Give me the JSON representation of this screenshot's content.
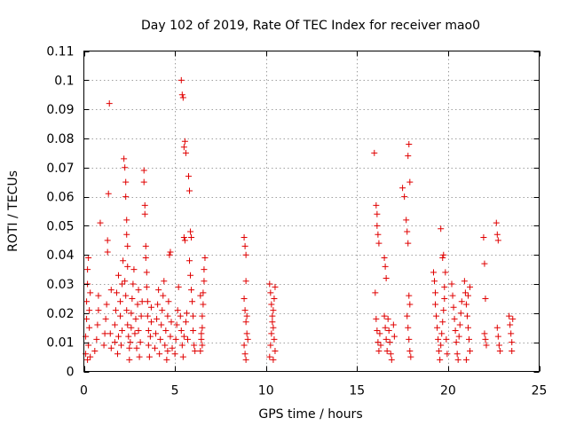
{
  "chart_data": {
    "type": "scatter",
    "title": "Day 102 of 2019, Rate Of TEC Index for receiver mao0",
    "xlabel": "GPS time / hours",
    "ylabel": "ROTI / TECUs",
    "xlim": [
      0,
      25
    ],
    "ylim": [
      0,
      0.11
    ],
    "x_ticks": [
      0,
      5,
      10,
      15,
      20,
      25
    ],
    "y_ticks": [
      0,
      0.01,
      0.02,
      0.03,
      0.04,
      0.05,
      0.06,
      0.07,
      0.08,
      0.09,
      0.1,
      0.11
    ],
    "x_tick_labels": [
      "0",
      "5",
      "10",
      "15",
      "20",
      "25"
    ],
    "y_tick_labels": [
      "0",
      "0.01",
      "0.02",
      "0.03",
      "0.04",
      "0.05",
      "0.06",
      "0.07",
      "0.08",
      "0.09",
      "0.1",
      "0.11"
    ],
    "grid": true,
    "marker": "+",
    "color": "#e00000",
    "series": [
      {
        "name": "ROTI",
        "points": [
          [
            0.1,
            0.006
          ],
          [
            0.1,
            0.012
          ],
          [
            0.15,
            0.018
          ],
          [
            0.15,
            0.024
          ],
          [
            0.2,
            0.03
          ],
          [
            0.2,
            0.035
          ],
          [
            0.25,
            0.039
          ],
          [
            0.25,
            0.009
          ],
          [
            0.2,
            0.004
          ],
          [
            0.3,
            0.015
          ],
          [
            0.3,
            0.021
          ],
          [
            0.35,
            0.027
          ],
          [
            0.35,
            0.005
          ],
          [
            0.6,
            0.007
          ],
          [
            0.7,
            0.011
          ],
          [
            0.75,
            0.016
          ],
          [
            0.8,
            0.021
          ],
          [
            0.8,
            0.026
          ],
          [
            0.9,
            0.051
          ],
          [
            1.1,
            0.009
          ],
          [
            1.15,
            0.013
          ],
          [
            1.2,
            0.018
          ],
          [
            1.25,
            0.023
          ],
          [
            1.3,
            0.045
          ],
          [
            1.3,
            0.041
          ],
          [
            1.35,
            0.061
          ],
          [
            1.4,
            0.092
          ],
          [
            1.45,
            0.013
          ],
          [
            1.5,
            0.008
          ],
          [
            1.5,
            0.028
          ],
          [
            1.7,
            0.01
          ],
          [
            1.7,
            0.016
          ],
          [
            1.75,
            0.021
          ],
          [
            1.8,
            0.027
          ],
          [
            1.85,
            0.006
          ],
          [
            1.9,
            0.012
          ],
          [
            1.9,
            0.033
          ],
          [
            2.0,
            0.019
          ],
          [
            2.0,
            0.024
          ],
          [
            2.05,
            0.009
          ],
          [
            2.1,
            0.014
          ],
          [
            2.1,
            0.03
          ],
          [
            2.15,
            0.038
          ],
          [
            2.2,
            0.073
          ],
          [
            2.25,
            0.07
          ],
          [
            2.3,
            0.065
          ],
          [
            2.3,
            0.06
          ],
          [
            2.35,
            0.052
          ],
          [
            2.35,
            0.047
          ],
          [
            2.4,
            0.043
          ],
          [
            2.4,
            0.036
          ],
          [
            2.25,
            0.031
          ],
          [
            2.3,
            0.026
          ],
          [
            2.35,
            0.021
          ],
          [
            2.4,
            0.016
          ],
          [
            2.45,
            0.012
          ],
          [
            2.5,
            0.008
          ],
          [
            2.5,
            0.004
          ],
          [
            2.55,
            0.01
          ],
          [
            2.6,
            0.015
          ],
          [
            2.6,
            0.02
          ],
          [
            2.65,
            0.025
          ],
          [
            2.7,
            0.03
          ],
          [
            2.75,
            0.035
          ],
          [
            2.8,
            0.013
          ],
          [
            2.85,
            0.018
          ],
          [
            2.9,
            0.008
          ],
          [
            2.95,
            0.023
          ],
          [
            3.0,
            0.028
          ],
          [
            3.0,
            0.014
          ],
          [
            3.05,
            0.005
          ],
          [
            3.1,
            0.01
          ],
          [
            3.15,
            0.019
          ],
          [
            3.2,
            0.024
          ],
          [
            3.3,
            0.069
          ],
          [
            3.3,
            0.065
          ],
          [
            3.35,
            0.057
          ],
          [
            3.35,
            0.054
          ],
          [
            3.4,
            0.043
          ],
          [
            3.4,
            0.039
          ],
          [
            3.45,
            0.034
          ],
          [
            3.45,
            0.029
          ],
          [
            3.5,
            0.024
          ],
          [
            3.5,
            0.019
          ],
          [
            3.55,
            0.014
          ],
          [
            3.55,
            0.009
          ],
          [
            3.6,
            0.005
          ],
          [
            3.65,
            0.012
          ],
          [
            3.7,
            0.017
          ],
          [
            3.7,
            0.022
          ],
          [
            3.9,
            0.008
          ],
          [
            3.95,
            0.013
          ],
          [
            4.0,
            0.018
          ],
          [
            4.05,
            0.023
          ],
          [
            4.1,
            0.028
          ],
          [
            4.15,
            0.006
          ],
          [
            4.2,
            0.011
          ],
          [
            4.25,
            0.016
          ],
          [
            4.3,
            0.021
          ],
          [
            4.35,
            0.026
          ],
          [
            4.4,
            0.031
          ],
          [
            4.45,
            0.009
          ],
          [
            4.5,
            0.014
          ],
          [
            4.55,
            0.004
          ],
          [
            4.6,
            0.007
          ],
          [
            4.6,
            0.019
          ],
          [
            4.65,
            0.024
          ],
          [
            4.7,
            0.04
          ],
          [
            4.75,
            0.041
          ],
          [
            4.75,
            0.012
          ],
          [
            4.8,
            0.017
          ],
          [
            4.85,
            0.008
          ],
          [
            5.0,
            0.006
          ],
          [
            5.05,
            0.011
          ],
          [
            5.1,
            0.016
          ],
          [
            5.15,
            0.021
          ],
          [
            5.2,
            0.029
          ],
          [
            5.35,
            0.1
          ],
          [
            5.4,
            0.095
          ],
          [
            5.45,
            0.094
          ],
          [
            5.5,
            0.077
          ],
          [
            5.55,
            0.079
          ],
          [
            5.6,
            0.075
          ],
          [
            5.5,
            0.046
          ],
          [
            5.55,
            0.045
          ],
          [
            5.3,
            0.019
          ],
          [
            5.35,
            0.014
          ],
          [
            5.4,
            0.009
          ],
          [
            5.45,
            0.005
          ],
          [
            5.5,
            0.012
          ],
          [
            5.6,
            0.017
          ],
          [
            5.65,
            0.02
          ],
          [
            5.7,
            0.011
          ],
          [
            5.75,
            0.067
          ],
          [
            5.8,
            0.062
          ],
          [
            5.85,
            0.048
          ],
          [
            5.9,
            0.046
          ],
          [
            5.8,
            0.038
          ],
          [
            5.85,
            0.033
          ],
          [
            5.9,
            0.028
          ],
          [
            5.95,
            0.024
          ],
          [
            6.0,
            0.019
          ],
          [
            6.0,
            0.014
          ],
          [
            6.05,
            0.009
          ],
          [
            6.1,
            0.007
          ],
          [
            6.4,
            0.007
          ],
          [
            6.45,
            0.011
          ],
          [
            6.5,
            0.015
          ],
          [
            6.5,
            0.019
          ],
          [
            6.55,
            0.023
          ],
          [
            6.55,
            0.027
          ],
          [
            6.6,
            0.031
          ],
          [
            6.6,
            0.035
          ],
          [
            6.65,
            0.039
          ],
          [
            6.4,
            0.026
          ],
          [
            6.45,
            0.013
          ],
          [
            6.5,
            0.009
          ],
          [
            8.8,
            0.046
          ],
          [
            8.85,
            0.043
          ],
          [
            8.9,
            0.04
          ],
          [
            8.9,
            0.031
          ],
          [
            8.8,
            0.025
          ],
          [
            8.85,
            0.021
          ],
          [
            8.9,
            0.017
          ],
          [
            8.95,
            0.013
          ],
          [
            8.8,
            0.009
          ],
          [
            8.85,
            0.006
          ],
          [
            8.9,
            0.004
          ],
          [
            9.0,
            0.011
          ],
          [
            8.95,
            0.019
          ],
          [
            10.2,
            0.005
          ],
          [
            10.25,
            0.009
          ],
          [
            10.3,
            0.013
          ],
          [
            10.35,
            0.017
          ],
          [
            10.4,
            0.021
          ],
          [
            10.45,
            0.025
          ],
          [
            10.5,
            0.029
          ],
          [
            10.2,
            0.03
          ],
          [
            10.25,
            0.027
          ],
          [
            10.3,
            0.023
          ],
          [
            10.35,
            0.019
          ],
          [
            10.4,
            0.015
          ],
          [
            10.45,
            0.011
          ],
          [
            10.5,
            0.007
          ],
          [
            10.4,
            0.004
          ],
          [
            15.95,
            0.075
          ],
          [
            16.05,
            0.057
          ],
          [
            16.1,
            0.054
          ],
          [
            16.1,
            0.05
          ],
          [
            16.15,
            0.047
          ],
          [
            16.2,
            0.044
          ],
          [
            16.0,
            0.027
          ],
          [
            16.05,
            0.018
          ],
          [
            16.1,
            0.014
          ],
          [
            16.15,
            0.01
          ],
          [
            16.2,
            0.007
          ],
          [
            16.25,
            0.013
          ],
          [
            16.3,
            0.009
          ],
          [
            16.5,
            0.039
          ],
          [
            16.55,
            0.036
          ],
          [
            16.6,
            0.032
          ],
          [
            16.5,
            0.019
          ],
          [
            16.55,
            0.015
          ],
          [
            16.6,
            0.011
          ],
          [
            16.65,
            0.007
          ],
          [
            16.7,
            0.018
          ],
          [
            16.75,
            0.014
          ],
          [
            16.8,
            0.01
          ],
          [
            16.85,
            0.006
          ],
          [
            16.9,
            0.004
          ],
          [
            17.0,
            0.016
          ],
          [
            17.05,
            0.012
          ],
          [
            17.5,
            0.063
          ],
          [
            17.6,
            0.06
          ],
          [
            17.7,
            0.052
          ],
          [
            17.75,
            0.048
          ],
          [
            17.8,
            0.044
          ],
          [
            17.85,
            0.078
          ],
          [
            17.8,
            0.074
          ],
          [
            17.9,
            0.065
          ],
          [
            17.85,
            0.026
          ],
          [
            17.9,
            0.023
          ],
          [
            17.75,
            0.019
          ],
          [
            17.8,
            0.015
          ],
          [
            17.85,
            0.011
          ],
          [
            17.9,
            0.007
          ],
          [
            17.95,
            0.005
          ],
          [
            19.2,
            0.034
          ],
          [
            19.25,
            0.031
          ],
          [
            19.3,
            0.027
          ],
          [
            19.3,
            0.023
          ],
          [
            19.35,
            0.019
          ],
          [
            19.4,
            0.015
          ],
          [
            19.45,
            0.011
          ],
          [
            19.5,
            0.007
          ],
          [
            19.55,
            0.004
          ],
          [
            19.6,
            0.009
          ],
          [
            19.65,
            0.013
          ],
          [
            19.7,
            0.017
          ],
          [
            19.75,
            0.021
          ],
          [
            19.8,
            0.025
          ],
          [
            19.8,
            0.029
          ],
          [
            19.85,
            0.034
          ],
          [
            19.7,
            0.039
          ],
          [
            19.75,
            0.04
          ],
          [
            19.6,
            0.049
          ],
          [
            19.9,
            0.011
          ],
          [
            19.95,
            0.006
          ],
          [
            20.2,
            0.03
          ],
          [
            20.25,
            0.026
          ],
          [
            20.3,
            0.022
          ],
          [
            20.35,
            0.018
          ],
          [
            20.4,
            0.014
          ],
          [
            20.45,
            0.01
          ],
          [
            20.5,
            0.006
          ],
          [
            20.55,
            0.004
          ],
          [
            20.6,
            0.012
          ],
          [
            20.65,
            0.016
          ],
          [
            20.7,
            0.02
          ],
          [
            20.75,
            0.024
          ],
          [
            20.9,
            0.031
          ],
          [
            20.95,
            0.027
          ],
          [
            21.0,
            0.023
          ],
          [
            21.05,
            0.019
          ],
          [
            21.1,
            0.015
          ],
          [
            21.15,
            0.011
          ],
          [
            21.2,
            0.007
          ],
          [
            21.0,
            0.004
          ],
          [
            21.1,
            0.026
          ],
          [
            21.2,
            0.029
          ],
          [
            21.95,
            0.046
          ],
          [
            22.0,
            0.037
          ],
          [
            22.05,
            0.025
          ],
          [
            22.0,
            0.013
          ],
          [
            22.05,
            0.011
          ],
          [
            22.1,
            0.009
          ],
          [
            22.65,
            0.051
          ],
          [
            22.7,
            0.047
          ],
          [
            22.75,
            0.045
          ],
          [
            22.7,
            0.015
          ],
          [
            22.75,
            0.012
          ],
          [
            22.8,
            0.009
          ],
          [
            22.85,
            0.007
          ],
          [
            23.35,
            0.019
          ],
          [
            23.4,
            0.016
          ],
          [
            23.45,
            0.013
          ],
          [
            23.5,
            0.01
          ],
          [
            23.55,
            0.018
          ],
          [
            23.5,
            0.007
          ]
        ]
      }
    ]
  }
}
